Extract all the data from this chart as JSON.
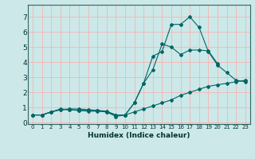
{
  "title": "",
  "xlabel": "Humidex (Indice chaleur)",
  "bg_color": "#cce8e8",
  "grid_color": "#ffaaaa",
  "line_color": "#006666",
  "xlim": [
    -0.5,
    23.5
  ],
  "ylim": [
    -0.1,
    7.8
  ],
  "xticks": [
    0,
    1,
    2,
    3,
    4,
    5,
    6,
    7,
    8,
    9,
    10,
    11,
    12,
    13,
    14,
    15,
    16,
    17,
    18,
    19,
    20,
    21,
    22,
    23
  ],
  "yticks": [
    0,
    1,
    2,
    3,
    4,
    5,
    6,
    7
  ],
  "series": [
    {
      "x": [
        0,
        1,
        2,
        3,
        4,
        5,
        6,
        7,
        8,
        9,
        10,
        11,
        12,
        13,
        14,
        15,
        16,
        17,
        18,
        19,
        20,
        21,
        22,
        23
      ],
      "y": [
        0.5,
        0.5,
        0.7,
        0.9,
        0.85,
        0.8,
        0.8,
        0.8,
        0.7,
        0.5,
        0.5,
        1.3,
        2.6,
        4.4,
        4.7,
        6.5,
        6.5,
        7.0,
        6.3,
        4.7,
        3.8,
        3.3,
        2.8,
        2.7
      ]
    },
    {
      "x": [
        0,
        1,
        2,
        3,
        4,
        5,
        6,
        7,
        8,
        9,
        10,
        11,
        12,
        13,
        14,
        15,
        16,
        17,
        18,
        19,
        20,
        21,
        22,
        23
      ],
      "y": [
        0.5,
        0.5,
        0.7,
        0.85,
        0.85,
        0.8,
        0.75,
        0.75,
        0.7,
        0.4,
        0.5,
        1.3,
        2.6,
        3.5,
        5.2,
        5.0,
        4.5,
        4.8,
        4.8,
        4.75,
        3.9,
        null,
        null,
        null
      ]
    },
    {
      "x": [
        0,
        1,
        2,
        3,
        4,
        5,
        6,
        7,
        8,
        9,
        10,
        11,
        12,
        13,
        14,
        15,
        16,
        17,
        18,
        19,
        20,
        21,
        22,
        23
      ],
      "y": [
        0.5,
        0.5,
        0.7,
        0.85,
        0.9,
        0.9,
        0.85,
        0.8,
        0.75,
        0.5,
        0.5,
        0.7,
        0.9,
        1.1,
        1.3,
        1.5,
        1.8,
        2.0,
        2.2,
        2.4,
        2.5,
        2.6,
        2.7,
        2.8
      ]
    }
  ]
}
